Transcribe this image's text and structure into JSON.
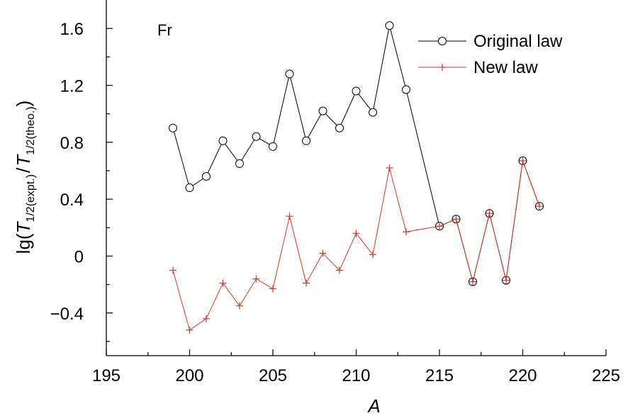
{
  "chart_data": {
    "type": "line",
    "annotation": "Fr",
    "xlabel": "A",
    "ylabel_prefix": "lg(",
    "ylabel_T1": "T",
    "ylabel_sub1": "1/2(expt.)",
    "ylabel_slash": "/",
    "ylabel_T2": "T",
    "ylabel_sub2": "1/2(theo.)",
    "ylabel_suffix": ")",
    "xlim": [
      195,
      225
    ],
    "ylim": [
      -0.7,
      1.8
    ],
    "xticks": [
      195,
      200,
      205,
      210,
      215,
      220,
      225
    ],
    "yticks": [
      -0.4,
      0,
      0.4,
      0.8,
      1.2,
      1.6
    ],
    "ytick_labels": [
      "−0.4",
      "0",
      "0.4",
      "0.8",
      "1.2",
      "1.6"
    ],
    "legend_position": "top-right",
    "series": [
      {
        "name": "Original law",
        "color": "#000000",
        "marker": "circle",
        "x": [
          199,
          200,
          201,
          202,
          203,
          204,
          205,
          206,
          207,
          208,
          209,
          210,
          211,
          212,
          213,
          215,
          216,
          217,
          218,
          219,
          220,
          221
        ],
        "values": [
          0.9,
          0.48,
          0.56,
          0.81,
          0.65,
          0.84,
          0.77,
          1.28,
          0.81,
          1.02,
          0.9,
          1.16,
          1.01,
          1.62,
          1.17,
          0.21,
          0.26,
          -0.18,
          0.3,
          -0.17,
          0.67,
          0.35
        ]
      },
      {
        "name": "New law",
        "color": "#d2382f",
        "marker": "plus",
        "x": [
          199,
          200,
          201,
          202,
          203,
          204,
          205,
          206,
          207,
          208,
          209,
          210,
          211,
          212,
          213,
          215,
          216,
          217,
          218,
          219,
          220,
          221
        ],
        "values": [
          -0.1,
          -0.52,
          -0.44,
          -0.19,
          -0.35,
          -0.16,
          -0.23,
          0.28,
          -0.19,
          0.02,
          -0.1,
          0.16,
          0.01,
          0.62,
          0.17,
          0.21,
          0.26,
          -0.18,
          0.3,
          -0.17,
          0.67,
          0.35
        ]
      }
    ]
  }
}
